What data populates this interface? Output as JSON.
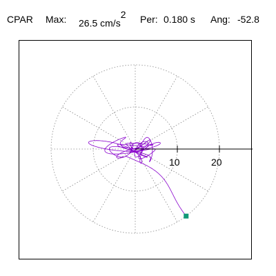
{
  "header": {
    "channel": "CPAR",
    "max_label": "Max:",
    "max_value": "26.5",
    "max_unit": "cm/s",
    "max_unit_exp": "2",
    "per_label": "Per:",
    "per_value": "0.180 s",
    "ang_label": "Ang:",
    "ang_value": "-52.8"
  },
  "colors": {
    "trace": "#8800cc",
    "marker": "#119977",
    "grid": "#888888",
    "axis": "#000000"
  },
  "chart_data": {
    "type": "line",
    "title": "",
    "radial_rings": [
      10,
      20
    ],
    "tick_labels": [
      "10",
      "20"
    ],
    "r_max": 26.5,
    "marker_angle_deg": -52.8,
    "grid": "dotted polar",
    "end_point": {
      "r": 20,
      "angle_deg": -52.8
    }
  }
}
